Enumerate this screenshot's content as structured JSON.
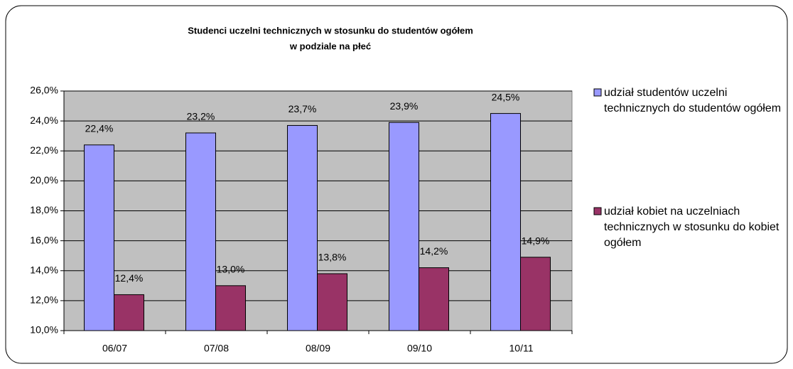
{
  "chart_data": {
    "type": "bar",
    "title": "Studenci uczelni technicznych w stosunku do studentów ogółem",
    "subtitle": "w podziale na płeć",
    "categories": [
      "06/07",
      "07/08",
      "08/09",
      "09/10",
      "10/11"
    ],
    "series": [
      {
        "name": "udział studentów uczelni technicznych do studentów ogółem",
        "color": "#9999ff",
        "values": [
          22.4,
          23.2,
          23.7,
          23.9,
          24.5
        ],
        "value_labels": [
          "22,4%",
          "23,2%",
          "23,7%",
          "23,9%",
          "24,5%"
        ]
      },
      {
        "name": "udział kobiet na uczelniach technicznych w stosunku do kobiet ogółem",
        "color": "#993366",
        "values": [
          12.4,
          13.0,
          13.8,
          14.2,
          14.9
        ],
        "value_labels": [
          "12,4%",
          "13,0%",
          "13,8%",
          "14,2%",
          "14,9%"
        ]
      }
    ],
    "ylim": [
      10,
      26
    ],
    "yticks": [
      {
        "value": 10,
        "label": "10,0%"
      },
      {
        "value": 12,
        "label": "12,0%"
      },
      {
        "value": 14,
        "label": "14,0%"
      },
      {
        "value": 16,
        "label": "16,0%"
      },
      {
        "value": 18,
        "label": "18,0%"
      },
      {
        "value": 20,
        "label": "20,0%"
      },
      {
        "value": 22,
        "label": "22,0%"
      },
      {
        "value": 24,
        "label": "24,0%"
      },
      {
        "value": 26,
        "label": "26,0%"
      }
    ],
    "grid": true,
    "legend": "right"
  }
}
